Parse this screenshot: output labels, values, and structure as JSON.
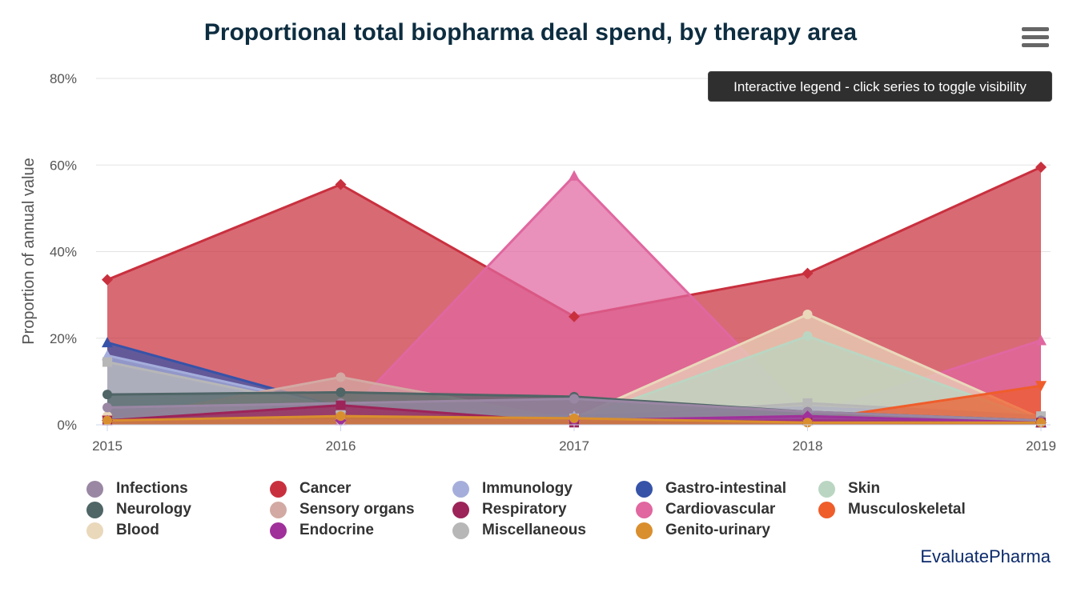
{
  "page": {
    "title": "Proportional total biopharma deal spend, by therapy area",
    "tooltip": "Interactive legend - click series to toggle visibility",
    "credit": "EvaluatePharma"
  },
  "menu": {
    "icon": "hamburger-menu-icon"
  },
  "chart_data": {
    "type": "area",
    "title": "Proportional total biopharma deal spend, by therapy area",
    "ylabel": "Proportion of annual value",
    "xlabel": "",
    "x": [
      "2015",
      "2016",
      "2017",
      "2018",
      "2019"
    ],
    "ylim": [
      0,
      80
    ],
    "yticks": [
      "0%",
      "20%",
      "40%",
      "60%",
      "80%"
    ],
    "grid": true,
    "legend_position": "bottom",
    "series": [
      {
        "name": "Infections",
        "color": "#9a87a4",
        "marker": "circle",
        "values": [
          4,
          5,
          6,
          3,
          1
        ]
      },
      {
        "name": "Neurology",
        "color": "#4f6566",
        "marker": "circle",
        "values": [
          7,
          7.5,
          6.5,
          3,
          1
        ]
      },
      {
        "name": "Blood",
        "color": "#ead8bb",
        "marker": "circle",
        "values": [
          2,
          2,
          1.5,
          25.5,
          1.5
        ]
      },
      {
        "name": "Cancer",
        "color": "#c9303e",
        "marker": "diamond",
        "values": [
          33.5,
          55.5,
          25,
          35,
          59.5
        ]
      },
      {
        "name": "Sensory organs",
        "color": "#d2aaa3",
        "marker": "circle",
        "values": [
          1,
          11,
          1,
          1,
          0.5
        ]
      },
      {
        "name": "Endocrine",
        "color": "#a0309a",
        "marker": "diamond",
        "values": [
          1,
          1,
          1,
          2,
          0.5
        ]
      },
      {
        "name": "Immunology",
        "color": "#a5aedb",
        "marker": "triangle",
        "values": [
          16,
          4,
          2,
          4,
          2
        ]
      },
      {
        "name": "Respiratory",
        "color": "#9c2459",
        "marker": "square",
        "values": [
          1,
          4.5,
          0.5,
          1,
          0.5
        ]
      },
      {
        "name": "Miscellaneous",
        "color": "#b7b7b7",
        "marker": "square",
        "values": [
          14.5,
          3.5,
          1.5,
          5,
          2
        ]
      },
      {
        "name": "Gastro-intestinal",
        "color": "#3653a8",
        "marker": "triangle",
        "values": [
          19,
          4,
          1,
          1,
          0.5
        ]
      },
      {
        "name": "Cardiovascular",
        "color": "#e067a0",
        "marker": "triangle",
        "values": [
          1,
          1,
          57.5,
          2,
          19.5
        ]
      },
      {
        "name": "Genito-urinary",
        "color": "#d98f2e",
        "marker": "circle",
        "values": [
          1,
          2,
          1.5,
          0.5,
          0.5
        ]
      },
      {
        "name": "Skin",
        "color": "#bad6c2",
        "marker": "circle",
        "values": [
          1,
          1,
          1,
          20.5,
          1
        ]
      },
      {
        "name": "Musculoskeletal",
        "color": "#ef5d2b",
        "marker": "triangle-down",
        "values": [
          1,
          1,
          1,
          1,
          9
        ]
      }
    ]
  }
}
